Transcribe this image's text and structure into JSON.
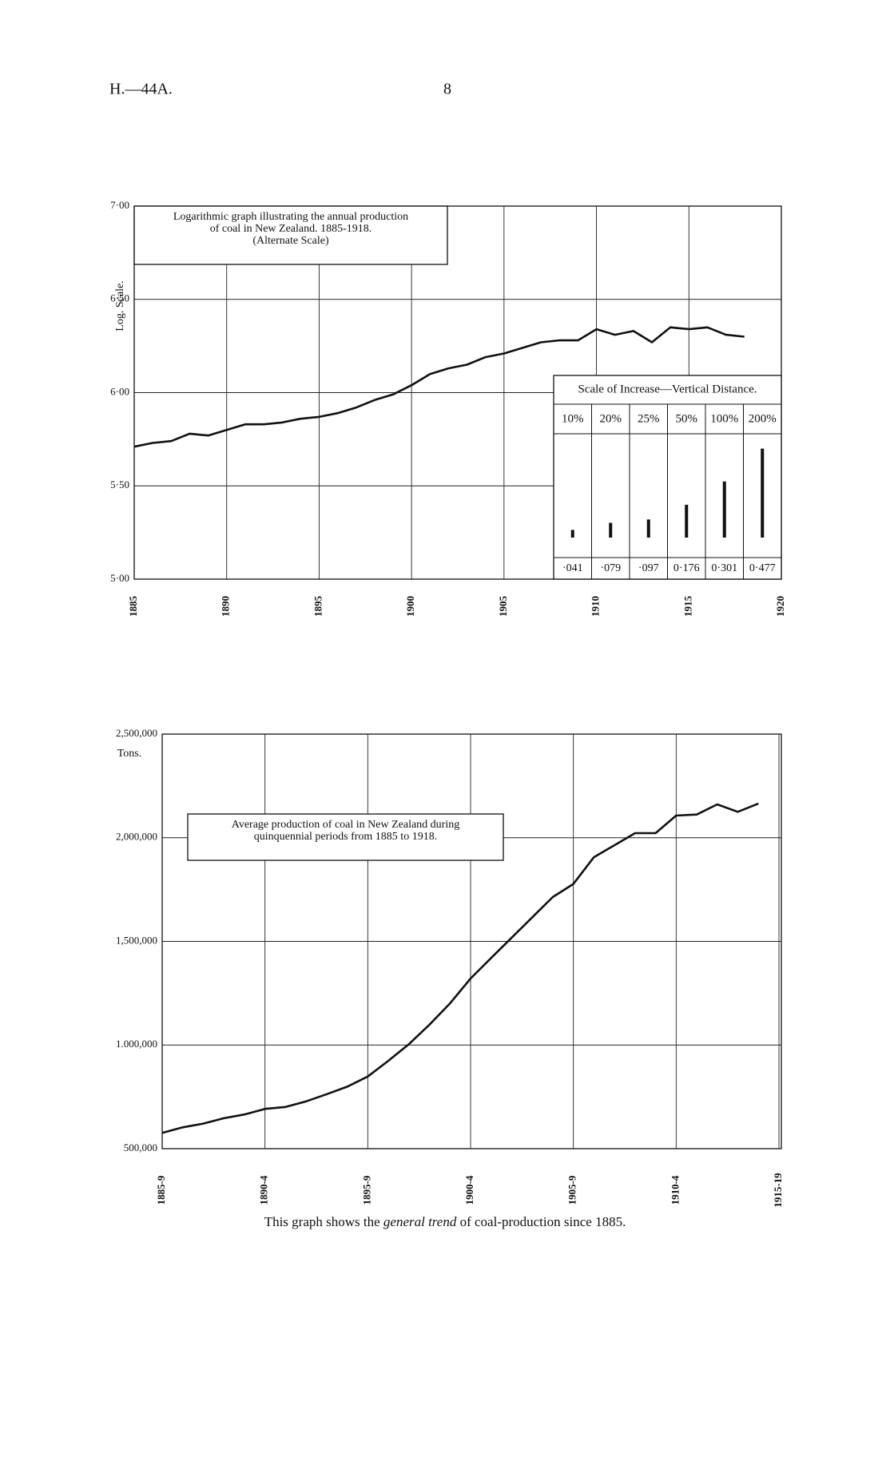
{
  "header": {
    "reference": "H.—44A.",
    "page": "8"
  },
  "chart_data": [
    {
      "type": "line",
      "title": [
        "Logarithmic graph illustrating the annual production",
        "of coal in New Zealand. 1885-1918.",
        "(Alternate Scale)"
      ],
      "y_label": "Log. Scale.",
      "x": [
        1885,
        1886,
        1887,
        1888,
        1889,
        1890,
        1891,
        1892,
        1893,
        1894,
        1895,
        1896,
        1897,
        1898,
        1899,
        1900,
        1901,
        1902,
        1903,
        1904,
        1905,
        1906,
        1907,
        1908,
        1909,
        1910,
        1911,
        1912,
        1913,
        1914,
        1915,
        1916,
        1917,
        1918
      ],
      "values": [
        5.71,
        5.73,
        5.74,
        5.78,
        5.77,
        5.8,
        5.83,
        5.83,
        5.84,
        5.86,
        5.87,
        5.89,
        5.92,
        5.96,
        5.99,
        6.04,
        6.1,
        6.13,
        6.15,
        6.19,
        6.21,
        6.24,
        6.27,
        6.28,
        6.28,
        6.34,
        6.31,
        6.33,
        6.27,
        6.35,
        6.34,
        6.35,
        6.31,
        6.3
      ],
      "color": "#111111",
      "xlim": [
        1885,
        1920
      ],
      "xticks": [
        1885,
        1890,
        1895,
        1900,
        1905,
        1910,
        1915,
        1920
      ],
      "ylim": [
        5,
        7
      ],
      "yticks": [
        {
          "value": 5,
          "label": "5·00"
        },
        {
          "value": 5.5,
          "label": "5·50"
        },
        {
          "value": 6,
          "label": "6·00"
        },
        {
          "value": 6.5,
          "label": "6·50"
        },
        {
          "value": 7,
          "label": "7·00"
        }
      ],
      "grid": true,
      "inset": {
        "title": "Scale of Increase—Vertical Distance.",
        "categories": [
          "10%",
          "20%",
          "25%",
          "50%",
          "100%",
          "200%"
        ],
        "values": [
          0.041,
          0.079,
          0.097,
          0.176,
          0.301,
          0.477
        ],
        "value_labels": [
          "·041",
          "·079",
          "·097",
          "0·176",
          "0·301",
          "0·477"
        ]
      }
    },
    {
      "type": "line",
      "title": [
        "Average production of coal in New Zealand during",
        "quinquennial periods from 1885 to 1918."
      ],
      "y_label": "Tons.",
      "x": [
        1885,
        1886,
        1887,
        1888,
        1889,
        1890,
        1891,
        1892,
        1893,
        1894,
        1895,
        1896,
        1897,
        1898,
        1899,
        1900,
        1901,
        1902,
        1903,
        1904,
        1905,
        1906,
        1907,
        1908,
        1909,
        1910,
        1911,
        1912,
        1913,
        1914
      ],
      "values": [
        576000,
        603000,
        621000,
        647000,
        665000,
        692000,
        701000,
        728000,
        763000,
        799000,
        848000,
        924000,
        1004000,
        1098000,
        1201000,
        1321000,
        1420000,
        1518000,
        1616000,
        1714000,
        1777000,
        1906000,
        1964000,
        2022000,
        2022000,
        2107000,
        2112000,
        2161000,
        2125000,
        2165000
      ],
      "color": "#111111",
      "xlim": [
        1885,
        1915
      ],
      "xticks": [
        {
          "value": 1885,
          "label": "1885-9"
        },
        {
          "value": 1890,
          "label": "1890-4"
        },
        {
          "value": 1895,
          "label": "1895-9"
        },
        {
          "value": 1900,
          "label": "1900-4"
        },
        {
          "value": 1905,
          "label": "1905-9"
        },
        {
          "value": 1910,
          "label": "1910-4"
        },
        {
          "value": 1915,
          "label": "1915-19"
        }
      ],
      "ylim": [
        500000,
        2500000
      ],
      "yticks": [
        {
          "value": 500000,
          "label": "500,000"
        },
        {
          "value": 1000000,
          "label": "1.000,000"
        },
        {
          "value": 1500000,
          "label": "1,500,000"
        },
        {
          "value": 2000000,
          "label": "2,000,000"
        },
        {
          "value": 2500000,
          "label": "2,500,000"
        }
      ],
      "grid": true
    }
  ],
  "caption": [
    "This graph shows the ",
    "general trend",
    " of coal-production since 1885."
  ]
}
